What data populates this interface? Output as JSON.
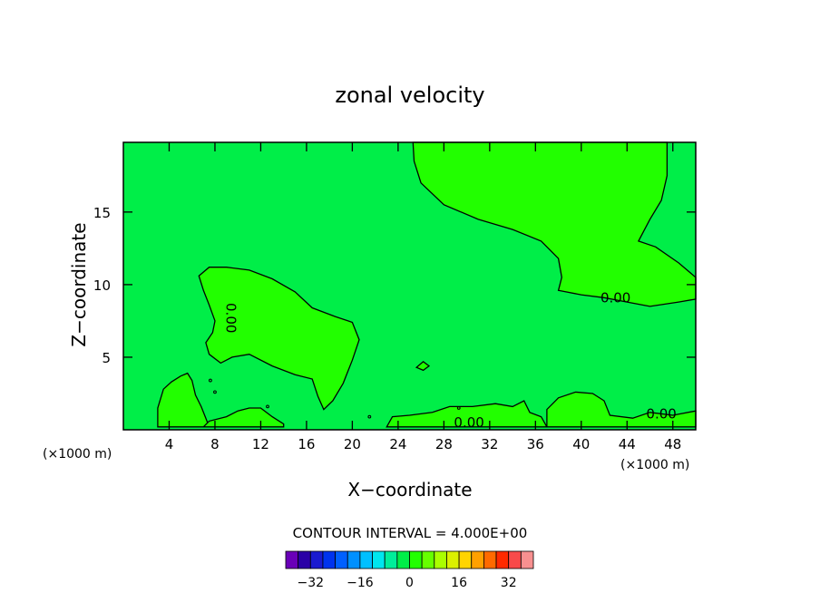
{
  "chart_data": {
    "type": "heatmap",
    "title": "zonal velocity",
    "xlabel": "X−coordinate",
    "ylabel": "Z−coordinate",
    "x_unit_left": "(×1000 m)",
    "x_unit_right": "(×1000 m)",
    "x_ticks": [
      4,
      8,
      12,
      16,
      20,
      24,
      28,
      32,
      36,
      40,
      44,
      48
    ],
    "y_ticks": [
      5,
      10,
      15
    ],
    "xlim": [
      0,
      50
    ],
    "ylim": [
      0,
      19.8
    ],
    "contour_interval_text": "CONTOUR INTERVAL = 4.000E+00",
    "contour_labels": [
      {
        "text": "0.00",
        "x": 43.0,
        "y": 9.1
      },
      {
        "text": "0.00",
        "x": 9.4,
        "y": 7.7,
        "rotate": 90
      },
      {
        "text": "0.00",
        "x": 30.2,
        "y": 0.5
      },
      {
        "text": "0.00",
        "x": 47.0,
        "y": 1.1
      }
    ],
    "background_color": "#00ee48",
    "inner_color": "#22ff00",
    "regions_fill_color": "#22ff00",
    "colorbar": {
      "levels": [
        -40,
        -36,
        -32,
        -28,
        -24,
        -20,
        -16,
        -12,
        -8,
        -4,
        0,
        4,
        8,
        12,
        16,
        20,
        24,
        28,
        32,
        36,
        40
      ],
      "colors": [
        "#6a00b8",
        "#2a00a6",
        "#1a1ad0",
        "#0033ee",
        "#0060ff",
        "#0090ff",
        "#00c0ff",
        "#00e6ee",
        "#00ee9a",
        "#00ee48",
        "#22ff00",
        "#66ff00",
        "#aaff00",
        "#dcf000",
        "#ffd400",
        "#ffa000",
        "#ff6a00",
        "#ff2a00",
        "#f84a4a",
        "#f89090"
      ],
      "tick_labels": [
        "−32",
        "−16",
        "0",
        "16",
        "32"
      ],
      "tick_values": [
        -32,
        -16,
        0,
        16,
        32
      ]
    },
    "regions": [
      {
        "name": "upper-right positive region",
        "points": [
          [
            25.3,
            19.8
          ],
          [
            25.4,
            18.5
          ],
          [
            26.0,
            17.0
          ],
          [
            28.0,
            15.5
          ],
          [
            31.0,
            14.5
          ],
          [
            34.0,
            13.8
          ],
          [
            36.5,
            13.0
          ],
          [
            38.0,
            11.8
          ],
          [
            38.3,
            10.5
          ],
          [
            38.0,
            9.6
          ],
          [
            40.0,
            9.3
          ],
          [
            42.0,
            9.1
          ],
          [
            44.0,
            8.8
          ],
          [
            46.0,
            8.5
          ],
          [
            48.5,
            8.8
          ],
          [
            50.0,
            9.0
          ],
          [
            50.0,
            10.5
          ],
          [
            48.5,
            11.5
          ],
          [
            46.5,
            12.6
          ],
          [
            45.0,
            13.0
          ],
          [
            46.0,
            14.5
          ],
          [
            47.0,
            15.8
          ],
          [
            47.5,
            17.5
          ],
          [
            47.5,
            19.8
          ]
        ]
      },
      {
        "name": "mid-left positive region",
        "points": [
          [
            6.6,
            10.6
          ],
          [
            7.5,
            11.2
          ],
          [
            9.0,
            11.2
          ],
          [
            11.0,
            11.0
          ],
          [
            13.0,
            10.4
          ],
          [
            15.0,
            9.5
          ],
          [
            16.5,
            8.4
          ],
          [
            18.5,
            7.8
          ],
          [
            20.0,
            7.4
          ],
          [
            20.6,
            6.2
          ],
          [
            20.0,
            4.8
          ],
          [
            19.2,
            3.2
          ],
          [
            18.3,
            2.0
          ],
          [
            17.5,
            1.4
          ],
          [
            17.0,
            2.3
          ],
          [
            16.5,
            3.5
          ],
          [
            15.0,
            3.8
          ],
          [
            13.0,
            4.4
          ],
          [
            11.0,
            5.2
          ],
          [
            9.5,
            5.0
          ],
          [
            8.5,
            4.6
          ],
          [
            7.5,
            5.2
          ],
          [
            7.2,
            6.0
          ],
          [
            7.8,
            6.7
          ],
          [
            8.0,
            7.5
          ],
          [
            7.5,
            8.6
          ],
          [
            7.0,
            9.6
          ]
        ]
      },
      {
        "name": "bottom-left bump",
        "points": [
          [
            3.0,
            0.2
          ],
          [
            3.0,
            1.5
          ],
          [
            3.5,
            2.8
          ],
          [
            4.2,
            3.3
          ],
          [
            5.0,
            3.7
          ],
          [
            5.6,
            3.9
          ],
          [
            6.0,
            3.4
          ],
          [
            6.3,
            2.4
          ],
          [
            6.8,
            1.6
          ],
          [
            7.2,
            0.8
          ],
          [
            7.5,
            0.2
          ]
        ]
      },
      {
        "name": "bottom strip",
        "points": [
          [
            7.0,
            0.2
          ],
          [
            7.5,
            0.6
          ],
          [
            9.0,
            0.9
          ],
          [
            10.0,
            1.3
          ],
          [
            11.0,
            1.5
          ],
          [
            12.0,
            1.5
          ],
          [
            13.0,
            0.9
          ],
          [
            14.0,
            0.4
          ],
          [
            14.0,
            0.2
          ]
        ]
      },
      {
        "name": "bottom-mid strip",
        "points": [
          [
            23.0,
            0.2
          ],
          [
            23.5,
            0.9
          ],
          [
            25.0,
            1.0
          ],
          [
            27.0,
            1.2
          ],
          [
            28.5,
            1.6
          ],
          [
            30.5,
            1.6
          ],
          [
            32.5,
            1.8
          ],
          [
            34.0,
            1.6
          ],
          [
            35.0,
            2.0
          ],
          [
            35.5,
            1.2
          ],
          [
            36.5,
            0.9
          ],
          [
            37.0,
            0.2
          ]
        ]
      },
      {
        "name": "bottom-right strip",
        "points": [
          [
            37.0,
            0.2
          ],
          [
            37.0,
            1.4
          ],
          [
            38.0,
            2.2
          ],
          [
            39.5,
            2.6
          ],
          [
            41.0,
            2.5
          ],
          [
            42.0,
            2.0
          ],
          [
            42.5,
            1.0
          ],
          [
            44.5,
            0.8
          ],
          [
            46.0,
            1.2
          ],
          [
            48.0,
            1.0
          ],
          [
            50.0,
            1.3
          ],
          [
            50.0,
            0.2
          ]
        ]
      },
      {
        "name": "small blob",
        "points": [
          [
            25.6,
            4.3
          ],
          [
            26.2,
            4.7
          ],
          [
            26.7,
            4.4
          ],
          [
            26.2,
            4.1
          ]
        ]
      }
    ]
  }
}
